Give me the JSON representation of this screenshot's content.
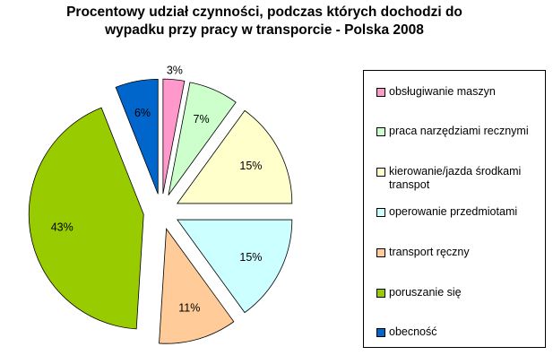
{
  "chart_data": {
    "type": "pie",
    "title": "Procentowy udział czynności, podczas których dochodzi do wypadku przy pracy w transporcie - Polska 2008",
    "title_lines": [
      "Procentowy udział czynności, podczas których dochodzi do",
      "wypadku przy pracy w transporcie - Polska 2008"
    ],
    "exploded": true,
    "legend_position": "right",
    "slices": [
      {
        "label": "obsługiwanie maszyn",
        "value": 3,
        "value_label": "3%",
        "color": "#ff99cc"
      },
      {
        "label": "praca narzędziami recznymi",
        "value": 7,
        "value_label": "7%",
        "color": "#ccffcc"
      },
      {
        "label": "kierowanie/jazda środkami transpot",
        "value": 15,
        "value_label": "15%",
        "color": "#ffffcc"
      },
      {
        "label": "operowanie przedmiotami",
        "value": 15,
        "value_label": "15%",
        "color": "#ccffff"
      },
      {
        "label": "transport ręczny",
        "value": 11,
        "value_label": "11%",
        "color": "#ffcc99"
      },
      {
        "label": "poruszanie się",
        "value": 43,
        "value_label": "43%",
        "color": "#99cc00"
      },
      {
        "label": "obecność",
        "value": 6,
        "value_label": "6%",
        "color": "#0066cc"
      }
    ]
  }
}
